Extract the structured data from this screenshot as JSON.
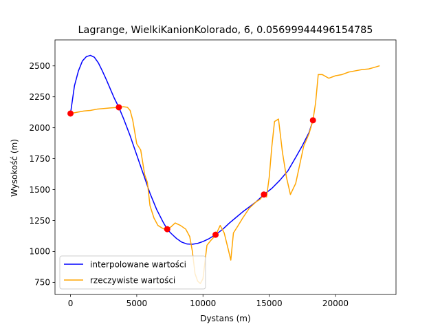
{
  "chart_data": {
    "type": "line",
    "title": "Lagrange, WielkiKanionKolorado, 6, 0.05699944496154785",
    "xlabel": "Dystans (m)",
    "ylabel": "Wysokość (m)",
    "xlim": [
      -1170,
      24570
    ],
    "ylim": [
      652,
      2710
    ],
    "xticks": [
      0,
      5000,
      10000,
      15000,
      20000
    ],
    "xtick_labels": [
      "0",
      "5000",
      "10000",
      "15000",
      "20000"
    ],
    "yticks": [
      750,
      1000,
      1250,
      1500,
      1750,
      2000,
      2250,
      2500
    ],
    "ytick_labels": [
      "750",
      "1000",
      "1250",
      "1500",
      "1750",
      "2000",
      "2250",
      "2500"
    ],
    "grid": false,
    "legend_position": "lower left",
    "series": [
      {
        "name": "interpolowane wartości",
        "color": "#0000ff",
        "x": [
          0,
          300,
          600,
          900,
          1200,
          1500,
          1800,
          2100,
          2400,
          2700,
          3000,
          3300,
          3650,
          4000,
          4500,
          5000,
          5500,
          6000,
          6500,
          7000,
          7300,
          7600,
          8000,
          8400,
          8800,
          9200,
          9600,
          10000,
          10400,
          10950,
          11500,
          12000,
          12500,
          13000,
          13500,
          14000,
          14600,
          15200,
          15800,
          16400,
          17000,
          17500,
          18000,
          18300
        ],
        "y": [
          2115,
          2340,
          2460,
          2540,
          2575,
          2585,
          2570,
          2525,
          2460,
          2390,
          2315,
          2240,
          2165,
          2075,
          1935,
          1780,
          1625,
          1470,
          1340,
          1235,
          1180,
          1145,
          1105,
          1075,
          1060,
          1058,
          1065,
          1080,
          1100,
          1135,
          1180,
          1230,
          1275,
          1320,
          1360,
          1400,
          1460,
          1510,
          1575,
          1650,
          1760,
          1855,
          1960,
          2060
        ]
      },
      {
        "name": "rzeczywiste wartości",
        "color": "#ffa500",
        "x": [
          0,
          500,
          1000,
          1500,
          2000,
          2500,
          3000,
          3650,
          4000,
          4300,
          4500,
          4700,
          5000,
          5300,
          5600,
          5800,
          6000,
          6300,
          6600,
          6900,
          7200,
          7300,
          7600,
          7900,
          8300,
          8700,
          9000,
          9200,
          9400,
          9600,
          9800,
          10000,
          10300,
          10600,
          10950,
          11300,
          11600,
          11900,
          12100,
          12300,
          12600,
          13000,
          13500,
          14000,
          14300,
          14600,
          14800,
          15000,
          15200,
          15400,
          15700,
          16000,
          16300,
          16600,
          17000,
          17300,
          17600,
          18000,
          18300,
          18500,
          18700,
          19000,
          19500,
          20000,
          20500,
          21000,
          21500,
          22000,
          22500,
          23000,
          23300
        ],
        "y": [
          2115,
          2125,
          2135,
          2140,
          2150,
          2155,
          2160,
          2165,
          2170,
          2165,
          2140,
          2060,
          1870,
          1820,
          1620,
          1560,
          1370,
          1270,
          1210,
          1190,
          1175,
          1180,
          1200,
          1230,
          1210,
          1180,
          1120,
          1000,
          820,
          760,
          740,
          780,
          1050,
          1090,
          1130,
          1210,
          1150,
          1020,
          930,
          1150,
          1200,
          1270,
          1350,
          1400,
          1420,
          1460,
          1440,
          1600,
          1850,
          2050,
          2070,
          1800,
          1600,
          1460,
          1550,
          1700,
          1850,
          1950,
          2060,
          2200,
          2430,
          2430,
          2400,
          2420,
          2430,
          2450,
          2460,
          2470,
          2475,
          2490,
          2500
        ]
      }
    ],
    "markers": {
      "color": "#ff0000",
      "x": [
        0,
        3650,
        7300,
        10950,
        14600,
        18300
      ],
      "y": [
        2115,
        2165,
        1180,
        1135,
        1460,
        2060
      ]
    }
  }
}
